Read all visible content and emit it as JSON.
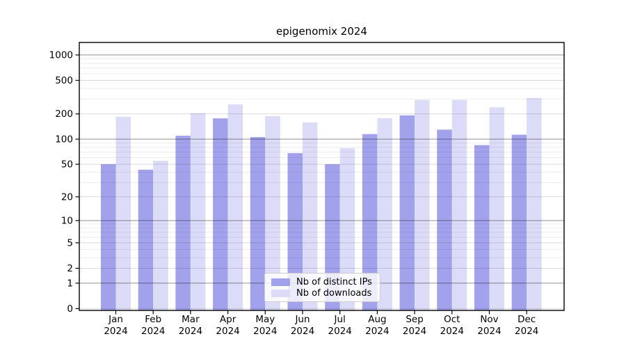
{
  "page": {
    "background": "#ffffff"
  },
  "chart_data": {
    "type": "bar",
    "title": "epigenomix 2024",
    "categories": [
      "Jan",
      "Feb",
      "Mar",
      "Apr",
      "May",
      "Jun",
      "Jul",
      "Aug",
      "Sep",
      "Oct",
      "Nov",
      "Dec"
    ],
    "category_year": "2024",
    "series": [
      {
        "name": "Nb of distinct IPs",
        "color": "#a2a2ec",
        "values": [
          50,
          43,
          110,
          177,
          106,
          68,
          50,
          115,
          192,
          130,
          85,
          113
        ]
      },
      {
        "name": "Nb of downloads",
        "color": "#dcdcf8",
        "values": [
          185,
          55,
          204,
          260,
          188,
          158,
          78,
          178,
          293,
          293,
          239,
          310
        ]
      }
    ],
    "y_axis": {
      "scale": "log1p",
      "ticks": [
        0,
        1,
        2,
        5,
        10,
        20,
        50,
        100,
        200,
        500,
        1000
      ],
      "decade_lines": [
        1,
        10,
        100,
        1000
      ],
      "minor_lines": [
        3,
        4,
        6,
        7,
        8,
        9,
        30,
        40,
        60,
        70,
        80,
        90,
        300,
        400,
        600,
        700,
        800,
        900
      ],
      "ylim": [
        0,
        1353
      ]
    },
    "grid": true,
    "legend_position": "lower-center",
    "colors": {
      "spine": "#000000",
      "grid_decade": "rgba(0,0,0,0.38)",
      "grid_labeled": "rgba(0,0,0,0.14)",
      "grid_minor": "rgba(0,0,0,0.07)",
      "tick_text": "#000000"
    }
  }
}
